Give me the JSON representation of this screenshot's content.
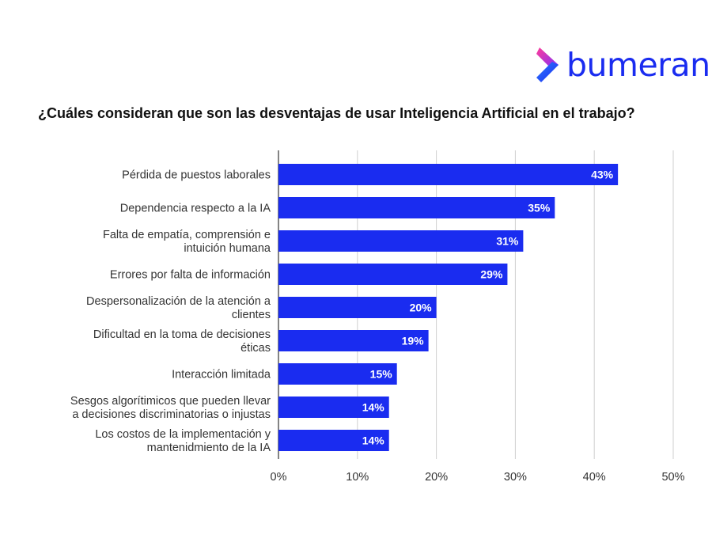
{
  "brand": {
    "name": "bumeran",
    "color": "#1a2cf0",
    "icon": "bumeran-chevron-logo"
  },
  "chart_data": {
    "type": "bar",
    "orientation": "horizontal",
    "title": "¿Cuáles consideran que son las desventajas de usar Inteligencia Artificial en el trabajo?",
    "categories": [
      [
        "Pérdida de puestos laborales"
      ],
      [
        "Dependencia  respecto a la IA"
      ],
      [
        "Falta de empatía, comprensión e",
        "intuición humana"
      ],
      [
        "Errores por falta de información"
      ],
      [
        "Despersonalización de la atención a",
        "clientes"
      ],
      [
        "Dificultad en la toma de decisiones",
        "éticas"
      ],
      [
        "Interacción limitada"
      ],
      [
        "Sesgos algorítimicos que pueden llevar",
        "a decisiones discriminatorias o injustas"
      ],
      [
        "Los costos de la implementación y",
        "mantenidmiento de la IA"
      ]
    ],
    "values": [
      43,
      35,
      31,
      29,
      20,
      19,
      15,
      14,
      14
    ],
    "data_labels": [
      "43%",
      "35%",
      "31%",
      "29%",
      "20%",
      "19%",
      "15%",
      "14%",
      "14%"
    ],
    "xlim": [
      0,
      50
    ],
    "xticks": [
      "0%",
      "10%",
      "20%",
      "30%",
      "40%",
      "50%"
    ],
    "grid": true,
    "bar_color": "#1a2cf0"
  }
}
